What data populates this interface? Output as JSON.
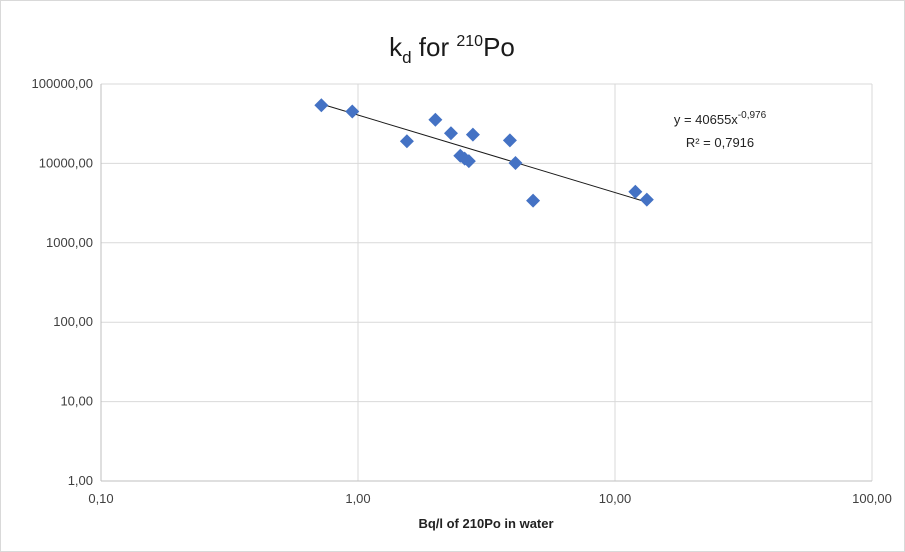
{
  "chart_data": {
    "type": "scatter",
    "title": {
      "base": "k",
      "subscript": "d",
      "middle": " for ",
      "superscript": "210",
      "end": "Po"
    },
    "xlabel": "Bq/l of 210Po in water",
    "ylabel": "",
    "x_scale": "log",
    "y_scale": "log",
    "xlim": [
      0.1,
      100
    ],
    "ylim": [
      1,
      100000
    ],
    "x_ticks": [
      0.1,
      1,
      10,
      100
    ],
    "x_tick_labels": [
      "0,10",
      "1,00",
      "10,00",
      "100,00"
    ],
    "y_ticks": [
      1,
      10,
      100,
      1000,
      10000,
      100000
    ],
    "y_tick_labels": [
      "1,00",
      "10,00",
      "100,00",
      "1000,00",
      "10000,00",
      "100000,00"
    ],
    "grid": true,
    "series": [
      {
        "marker": "diamond",
        "color": "#4472C4",
        "points": [
          {
            "x": 0.72,
            "y": 54000
          },
          {
            "x": 0.95,
            "y": 45000
          },
          {
            "x": 1.55,
            "y": 19000
          },
          {
            "x": 2.0,
            "y": 35500
          },
          {
            "x": 2.3,
            "y": 24000
          },
          {
            "x": 2.5,
            "y": 12500
          },
          {
            "x": 2.6,
            "y": 11500
          },
          {
            "x": 2.7,
            "y": 10700
          },
          {
            "x": 2.8,
            "y": 23000
          },
          {
            "x": 3.9,
            "y": 19500
          },
          {
            "x": 4.1,
            "y": 10100
          },
          {
            "x": 4.8,
            "y": 3400
          },
          {
            "x": 12.0,
            "y": 4400
          },
          {
            "x": 13.3,
            "y": 3500
          }
        ]
      }
    ],
    "trendline": {
      "type": "power",
      "coefficient": 40655,
      "exponent": -0.976,
      "x_range": [
        0.75,
        13.3
      ],
      "color": "#1a1a1a",
      "equation_base": "y = 40655x",
      "equation_exponent": "-0,976",
      "r_squared_label": "R² = 0,7916"
    }
  }
}
